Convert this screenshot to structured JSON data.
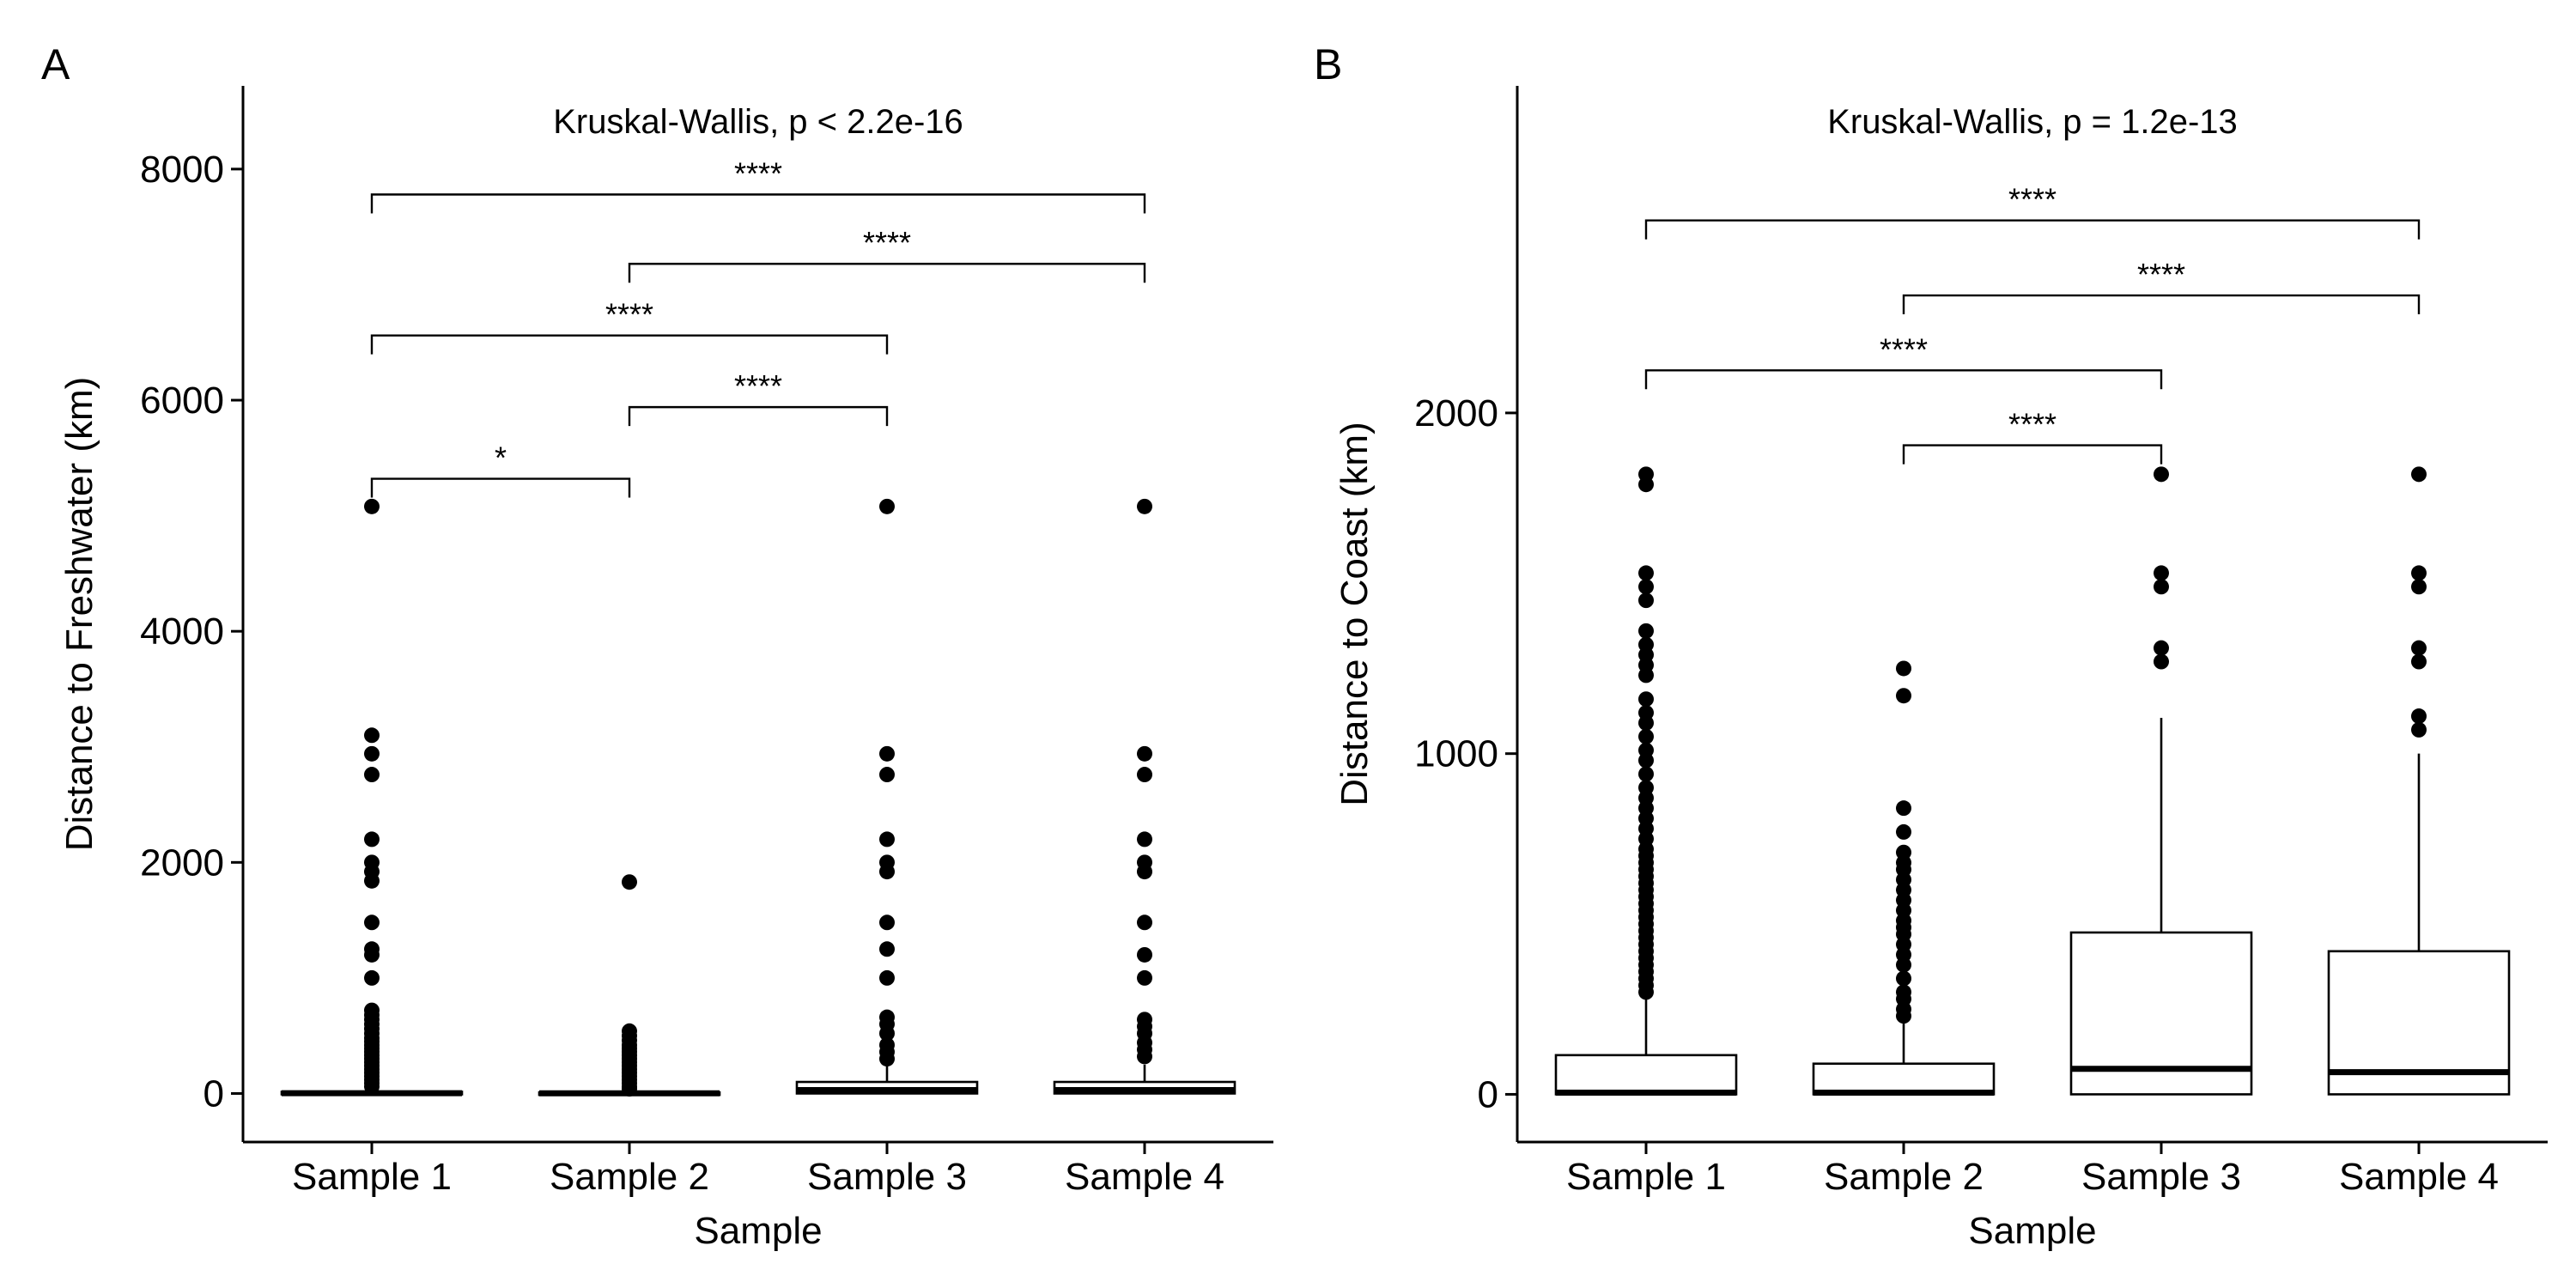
{
  "panels": [
    {
      "panel_label": "A",
      "test_label": "Kruskal-Wallis, p < 2.2e-16"
    },
    {
      "panel_label": "B",
      "test_label": "Kruskal-Wallis, p = 1.2e-13"
    }
  ],
  "chart_data": [
    {
      "type": "boxplot",
      "panel": "A",
      "title": "Kruskal-Wallis, p < 2.2e-16",
      "xlabel": "Sample",
      "ylabel": "Distance to Freshwater (km)",
      "categories": [
        "Sample 1",
        "Sample 2",
        "Sample 3",
        "Sample 4"
      ],
      "ylim": [
        -420,
        8720
      ],
      "yticks": [
        0,
        2000,
        4000,
        6000,
        8000
      ],
      "ytick_labels": [
        "0",
        "2000",
        "4000",
        "6000",
        "8000"
      ],
      "boxes": [
        {
          "category": "Sample 1",
          "q1": 0,
          "median": 3,
          "q3": 15,
          "whisker_low": 0,
          "whisker_high": 30
        },
        {
          "category": "Sample 2",
          "q1": 0,
          "median": 2,
          "q3": 10,
          "whisker_low": 0,
          "whisker_high": 20
        },
        {
          "category": "Sample 3",
          "q1": 0,
          "median": 30,
          "q3": 100,
          "whisker_low": 0,
          "whisker_high": 250
        },
        {
          "category": "Sample 4",
          "q1": 0,
          "median": 30,
          "q3": 100,
          "whisker_low": 0,
          "whisker_high": 250
        }
      ],
      "outliers": [
        {
          "category": "Sample 1",
          "values": [
            5080,
            3100,
            2940,
            2760,
            2200,
            2000,
            1920,
            1840,
            1480,
            1250,
            1200,
            1000,
            720,
            680,
            640,
            600,
            560,
            520,
            480,
            450,
            420,
            390,
            360,
            330,
            300,
            270,
            240,
            210,
            180,
            150,
            120,
            90,
            60
          ]
        },
        {
          "category": "Sample 2",
          "values": [
            1830,
            540,
            500,
            460,
            420,
            390,
            360,
            330,
            300,
            270,
            240,
            210,
            180,
            150,
            120,
            90,
            60,
            40
          ]
        },
        {
          "category": "Sample 3",
          "values": [
            5080,
            2940,
            2760,
            2200,
            2000,
            1920,
            1480,
            1250,
            1000,
            660,
            600,
            520,
            420,
            360,
            300
          ]
        },
        {
          "category": "Sample 4",
          "values": [
            5080,
            2940,
            2760,
            2200,
            2000,
            1920,
            1480,
            1200,
            1000,
            640,
            580,
            520,
            440,
            380,
            320
          ]
        }
      ],
      "comparisons": [
        {
          "from": "Sample 1",
          "to": "Sample 2",
          "y": 5320,
          "label": "*"
        },
        {
          "from": "Sample 2",
          "to": "Sample 3",
          "y": 5940,
          "label": "****"
        },
        {
          "from": "Sample 1",
          "to": "Sample 3",
          "y": 6560,
          "label": "****"
        },
        {
          "from": "Sample 2",
          "to": "Sample 4",
          "y": 7180,
          "label": "****"
        },
        {
          "from": "Sample 1",
          "to": "Sample 4",
          "y": 7780,
          "label": "****"
        }
      ]
    },
    {
      "type": "boxplot",
      "panel": "B",
      "title": "Kruskal-Wallis, p = 1.2e-13",
      "xlabel": "Sample",
      "ylabel": "Distance to Coast (km)",
      "categories": [
        "Sample 1",
        "Sample 2",
        "Sample 3",
        "Sample 4"
      ],
      "ylim": [
        -140,
        2960
      ],
      "yticks": [
        0,
        1000,
        2000
      ],
      "ytick_labels": [
        "0",
        "1000",
        "2000"
      ],
      "boxes": [
        {
          "category": "Sample 1",
          "q1": 0,
          "median": 5,
          "q3": 115,
          "whisker_low": 0,
          "whisker_high": 290
        },
        {
          "category": "Sample 2",
          "q1": 0,
          "median": 5,
          "q3": 90,
          "whisker_low": 0,
          "whisker_high": 220
        },
        {
          "category": "Sample 3",
          "q1": 0,
          "median": 75,
          "q3": 475,
          "whisker_low": 0,
          "whisker_high": 1105
        },
        {
          "category": "Sample 4",
          "q1": 0,
          "median": 65,
          "q3": 420,
          "whisker_low": 0,
          "whisker_high": 1000
        }
      ],
      "outliers": [
        {
          "category": "Sample 1",
          "values": [
            1820,
            1790,
            1530,
            1490,
            1450,
            1360,
            1320,
            1290,
            1260,
            1230,
            1160,
            1120,
            1090,
            1050,
            1010,
            980,
            940,
            900,
            870,
            840,
            810,
            780,
            750,
            720,
            700,
            680,
            660,
            640,
            620,
            600,
            580,
            560,
            540,
            520,
            500,
            480,
            460,
            440,
            420,
            400,
            380,
            360,
            340,
            320,
            300
          ]
        },
        {
          "category": "Sample 2",
          "values": [
            1250,
            1170,
            840,
            770,
            710,
            680,
            660,
            630,
            600,
            570,
            540,
            510,
            490,
            470,
            440,
            410,
            380,
            340,
            300,
            280,
            250,
            230
          ]
        },
        {
          "category": "Sample 3",
          "values": [
            1820,
            1530,
            1490,
            1310,
            1270
          ]
        },
        {
          "category": "Sample 4",
          "values": [
            1820,
            1530,
            1490,
            1310,
            1270,
            1110,
            1070
          ]
        }
      ],
      "comparisons": [
        {
          "from": "Sample 2",
          "to": "Sample 3",
          "y": 1905,
          "label": "****"
        },
        {
          "from": "Sample 1",
          "to": "Sample 3",
          "y": 2125,
          "label": "****"
        },
        {
          "from": "Sample 2",
          "to": "Sample 4",
          "y": 2345,
          "label": "****"
        },
        {
          "from": "Sample 1",
          "to": "Sample 4",
          "y": 2565,
          "label": "****"
        }
      ]
    }
  ]
}
